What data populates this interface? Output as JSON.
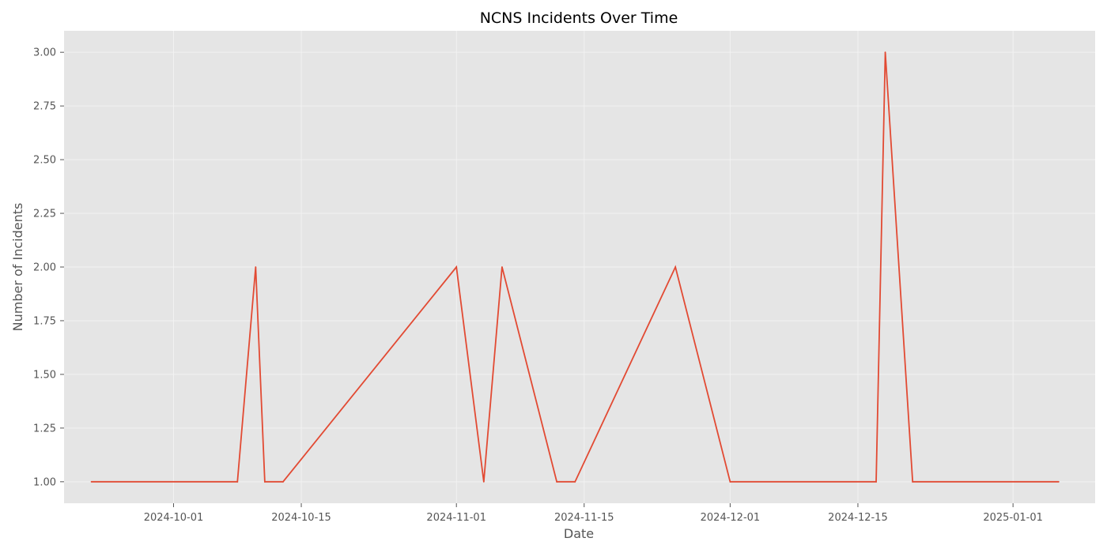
{
  "chart_data": {
    "type": "line",
    "title": "NCNS Incidents Over Time",
    "xlabel": "Date",
    "ylabel": "Number of Incidents",
    "x_is_date": true,
    "xlim": [
      "2024-09-19",
      "2025-01-10"
    ],
    "ylim": [
      0.9,
      3.1
    ],
    "x_ticks": [
      "2024-10-01",
      "2024-10-15",
      "2024-11-01",
      "2024-11-15",
      "2024-12-01",
      "2024-12-15",
      "2025-01-01"
    ],
    "y_ticks": [
      1.0,
      1.25,
      1.5,
      1.75,
      2.0,
      2.25,
      2.5,
      2.75,
      3.0
    ],
    "y_tick_labels": [
      "1.00",
      "1.25",
      "1.50",
      "1.75",
      "2.00",
      "2.25",
      "2.50",
      "2.75",
      "3.00"
    ],
    "grid": true,
    "series": [
      {
        "color": "#E24A33",
        "x": [
          "2024-09-22",
          "2024-10-08",
          "2024-10-10",
          "2024-10-11",
          "2024-10-13",
          "2024-11-01",
          "2024-11-04",
          "2024-11-06",
          "2024-11-12",
          "2024-11-14",
          "2024-11-25",
          "2024-12-01",
          "2024-12-17",
          "2024-12-18",
          "2024-12-21",
          "2025-01-06"
        ],
        "y": [
          1,
          1,
          2,
          1,
          1,
          2,
          1,
          2,
          1,
          1,
          2,
          1,
          1,
          3,
          1,
          1
        ]
      }
    ]
  },
  "colors": {
    "plot_background": "#E5E5E5",
    "grid": "#F2F2F2",
    "line": "#E24A33"
  }
}
